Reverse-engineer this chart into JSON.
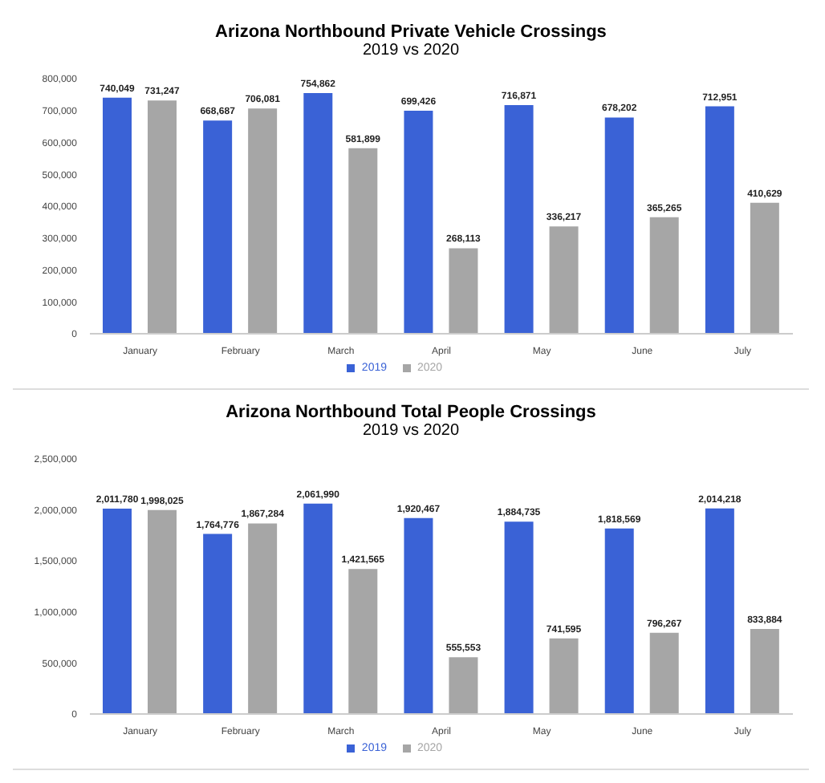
{
  "chart_data": [
    {
      "type": "bar",
      "title": "Arizona Northbound Private Vehicle Crossings",
      "subtitle": "2019 vs 2020",
      "categories": [
        "January",
        "February",
        "March",
        "April",
        "May",
        "June",
        "July"
      ],
      "series": [
        {
          "name": "2019",
          "color": "#3a62d6",
          "values": [
            740049,
            668687,
            754862,
            699426,
            716871,
            678202,
            712951
          ],
          "value_labels": [
            "740,049",
            "668,687",
            "754,862",
            "699,426",
            "716,871",
            "678,202",
            "712,951"
          ]
        },
        {
          "name": "2020",
          "color": "#a6a6a6",
          "values": [
            731247,
            706081,
            581899,
            268113,
            336217,
            365265,
            410629
          ],
          "value_labels": [
            "731,247",
            "706,081",
            "581,899",
            "268,113",
            "336,217",
            "365,265",
            "410,629"
          ]
        }
      ],
      "ylim": [
        0,
        800000
      ],
      "yticks": [
        0,
        {
          "value": 100000,
          "label": "100,000"
        },
        {
          "value": 200000,
          "label": "200,000"
        },
        {
          "value": 300000,
          "label": "300,000"
        },
        {
          "value": 400000,
          "label": "400,000"
        },
        {
          "value": 500000,
          "label": "500,000"
        },
        {
          "value": 600000,
          "label": "600,000"
        },
        {
          "value": 700000,
          "label": "700,000"
        },
        {
          "value": 800000,
          "label": "800,000"
        }
      ],
      "legend": "bottom",
      "grid": false
    },
    {
      "type": "bar",
      "title": "Arizona Northbound Total People Crossings",
      "subtitle": "2019 vs 2020",
      "categories": [
        "January",
        "February",
        "March",
        "April",
        "May",
        "June",
        "July"
      ],
      "series": [
        {
          "name": "2019",
          "color": "#3a62d6",
          "values": [
            2011780,
            1764776,
            2061990,
            1920467,
            1884735,
            1818569,
            2014218
          ],
          "value_labels": [
            "2,011,780",
            "1,764,776",
            "2,061,990",
            "1,920,467",
            "1,884,735",
            "1,818,569",
            "2,014,218"
          ]
        },
        {
          "name": "2020",
          "color": "#a6a6a6",
          "values": [
            1998025,
            1867284,
            1421565,
            555553,
            741595,
            796267,
            833884
          ],
          "value_labels": [
            "1,998,025",
            "1,867,284",
            "1,421,565",
            "555,553",
            "741,595",
            "796,267",
            "833,884"
          ]
        }
      ],
      "ylim": [
        0,
        2500000
      ],
      "yticks": [
        0,
        {
          "value": 500000,
          "label": "500,000"
        },
        {
          "value": 1000000,
          "label": "1,000,000"
        },
        {
          "value": 1500000,
          "label": "1,500,000"
        },
        {
          "value": 2000000,
          "label": "2,000,000"
        },
        {
          "value": 2500000,
          "label": "2,500,000"
        }
      ],
      "legend": "bottom",
      "grid": false
    }
  ]
}
